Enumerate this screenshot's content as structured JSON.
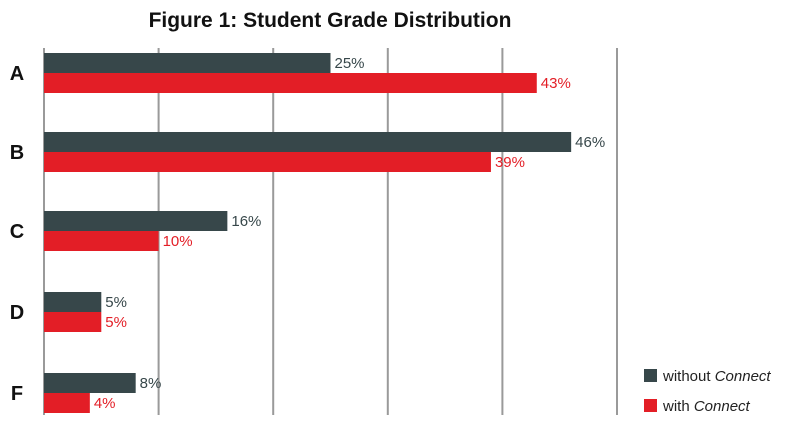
{
  "chart_data": {
    "type": "bar",
    "orientation": "horizontal",
    "title": "Figure 1: Student Grade Distribution",
    "categories": [
      "A",
      "B",
      "C",
      "D",
      "F"
    ],
    "series": [
      {
        "name": "without Connect",
        "values": [
          25,
          46,
          16,
          5,
          8
        ],
        "labels": [
          "25%",
          "46%",
          "16%",
          "5%",
          "8%"
        ],
        "color": "#37474a"
      },
      {
        "name": "with Connect",
        "values": [
          43,
          39,
          10,
          5,
          4
        ],
        "labels": [
          "43%",
          "39%",
          "10%",
          "5%",
          "4%"
        ],
        "color": "#e31e26"
      }
    ],
    "xlim": [
      0,
      50
    ],
    "grid": true,
    "legend_position": "bottom-right"
  },
  "legend": {
    "items": [
      {
        "prefix": "without ",
        "emphasis": "Connect",
        "color": "#37474a"
      },
      {
        "prefix": "with ",
        "emphasis": "Connect",
        "color": "#e31e26"
      }
    ]
  }
}
